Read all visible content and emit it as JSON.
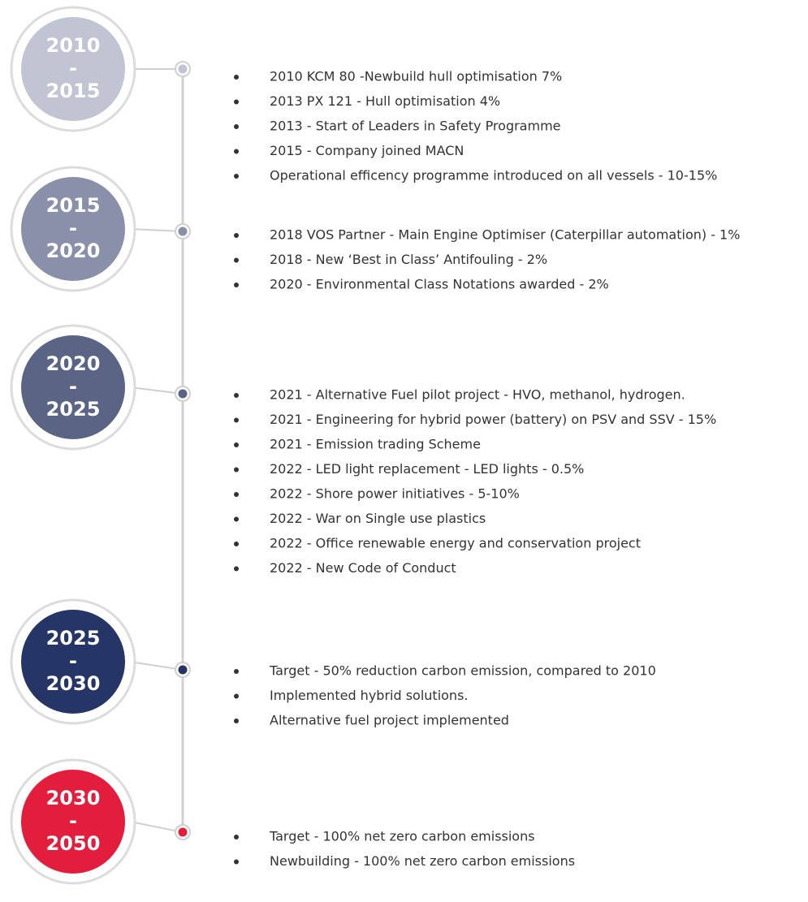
{
  "periods": [
    {
      "start": "2010",
      "sep": "-",
      "end": "2015",
      "color": "#c0c4d3",
      "items": [
        "2010 KCM 80 -Newbuild hull optimisation 7%",
        "2013 PX 121 - Hull optimisation 4%",
        "2013 - Start of Leaders in Safety Programme",
        "2015 - Company joined MACN",
        "Operational efficency programme introduced on all vessels - 10-15%"
      ]
    },
    {
      "start": "2015",
      "sep": "-",
      "end": "2020",
      "color": "#8a90aa",
      "items": [
        "2018 VOS Partner - Main Engine Optimiser (Caterpillar automation) - 1%",
        "2018 - New ‘Best in Class’ Antifouling - 2%",
        "2020 - Environmental Class Notations awarded - 2%"
      ]
    },
    {
      "start": "2020",
      "sep": "-",
      "end": "2025",
      "color": "#5a6585",
      "items": [
        "2021 - Alternative Fuel pilot project  - HVO, methanol, hydrogen.",
        "2021 - Engineering for hybrid power (battery) on PSV and SSV - 15%",
        "2021 - Emission trading Scheme",
        "2022 - LED light replacement - LED lights - 0.5%",
        "2022 - Shore power initiatives - 5-10%",
        "2022 - War on Single use plastics",
        "2022 - Office renewable energy and conservation project",
        "2022 - New Code of Conduct"
      ]
    },
    {
      "start": "2025",
      "sep": "-",
      "end": "2030",
      "color": "#253565",
      "items": [
        "Target -  50% reduction carbon emission, compared to 2010",
        "Implemented hybrid solutions.",
        "Alternative fuel project implemented"
      ]
    },
    {
      "start": "2030",
      "sep": "-",
      "end": "2050",
      "color": "#e31e3c",
      "items": [
        "Target - 100% net zero carbon emissions",
        "Newbuilding - 100% net zero carbon emissions"
      ]
    }
  ]
}
